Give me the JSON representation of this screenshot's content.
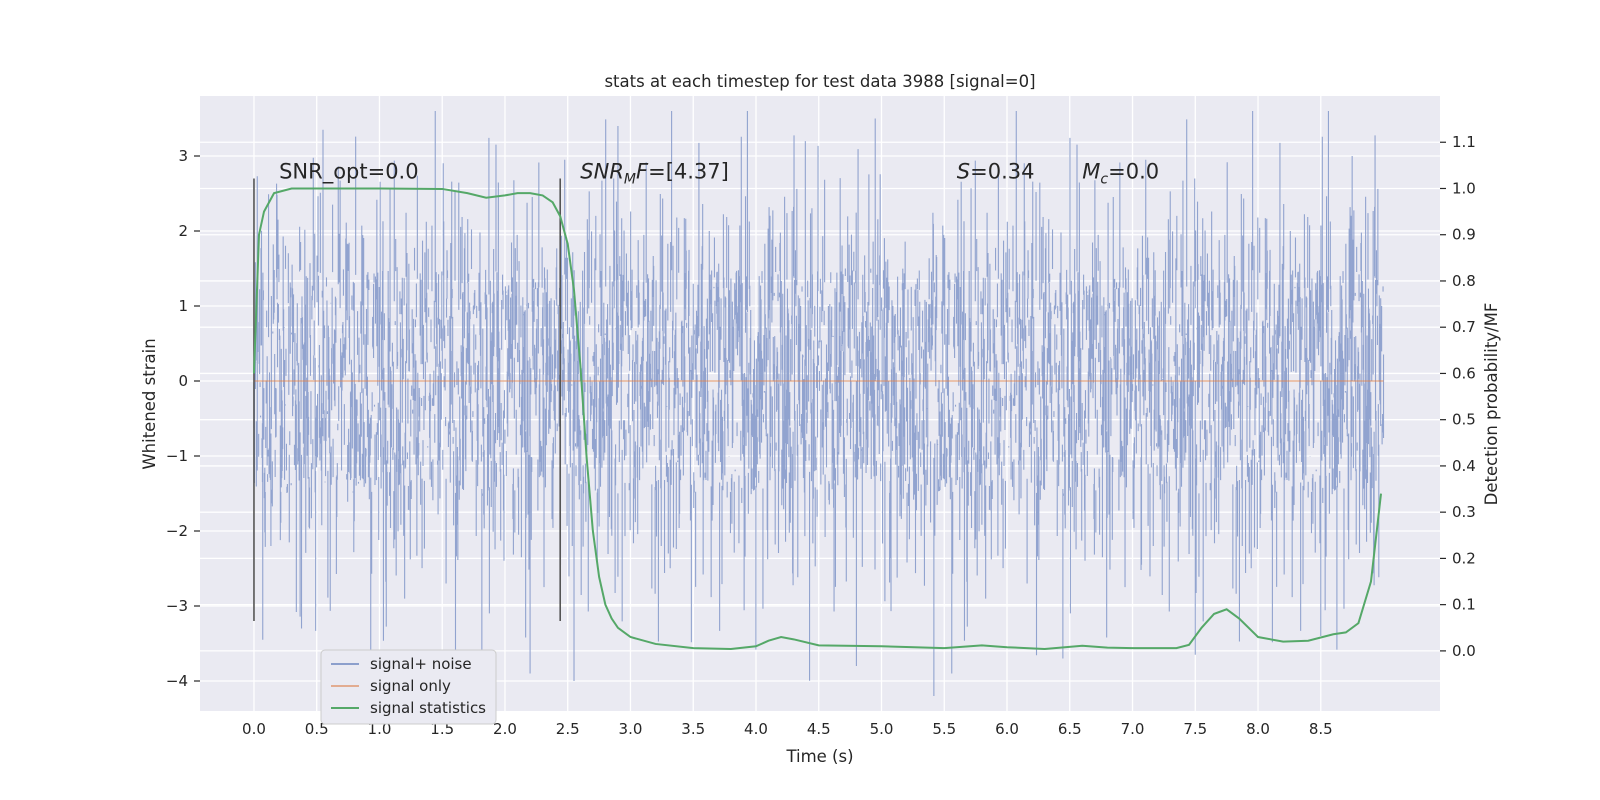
{
  "chart_data": {
    "type": "line",
    "title": "stats at each timestep for test data 3988 [signal=0]",
    "xlabel": "Time (s)",
    "ylabel": "Whitened strain",
    "y2label": "Detection probability/MF",
    "xlim": [
      -0.43,
      9.45
    ],
    "ylim": [
      -4.4,
      3.8
    ],
    "y2lim": [
      -0.13,
      1.2
    ],
    "x_ticks": [
      "0.0",
      "0.5",
      "1.0",
      "1.5",
      "2.0",
      "2.5",
      "3.0",
      "3.5",
      "4.0",
      "4.5",
      "5.0",
      "5.5",
      "6.0",
      "6.5",
      "7.0",
      "7.5",
      "8.0",
      "8.5"
    ],
    "y_ticks": [
      "3",
      "2",
      "1",
      "0",
      "−1",
      "−2",
      "−3",
      "−4"
    ],
    "y2_ticks": [
      "1.1",
      "1.0",
      "0.9",
      "0.8",
      "0.7",
      "0.6",
      "0.5",
      "0.4",
      "0.3",
      "0.2",
      "0.1",
      "0.0"
    ],
    "grid": true,
    "legend_position": "lower-left",
    "colors": {
      "noise": "#8c9fcc",
      "signal": "#dd8452",
      "stats": "#55a868",
      "axes_bg": "#eaeaf2",
      "vline": "#555555"
    },
    "annotations": [
      {
        "label": "SNR_opt=0.0",
        "x": 0.2,
        "y": 2.7
      },
      {
        "label": "SNR_MF=[4.37]",
        "x": 2.6,
        "y": 2.7
      },
      {
        "label": "S=0.34",
        "x": 5.6,
        "y": 2.7
      },
      {
        "label": "M_c=0.0",
        "x": 6.6,
        "y": 2.7
      }
    ],
    "vlines": [
      {
        "x": 0.0,
        "ymin": -3.2,
        "ymax": 2.7
      },
      {
        "x": 2.44,
        "ymin": -3.2,
        "ymax": 2.7
      }
    ],
    "series": [
      {
        "name": "signal+ noise",
        "axis": "left",
        "x_range": [
          0.0,
          9.0
        ],
        "typical_envelope": [
          -1.5,
          1.5
        ],
        "extremes": [
          {
            "x": 0.55,
            "y": 3.35
          },
          {
            "x": 0.07,
            "y": -3.45
          },
          {
            "x": 2.2,
            "y": -3.9
          },
          {
            "x": 2.55,
            "y": -4.0
          },
          {
            "x": 2.9,
            "y": 3.4
          },
          {
            "x": 4.8,
            "y": -3.8
          },
          {
            "x": 4.95,
            "y": 3.5
          },
          {
            "x": 7.5,
            "y": -3.65
          },
          {
            "x": 8.5,
            "y": -3.4
          },
          {
            "x": 8.75,
            "y": 3.0
          }
        ]
      },
      {
        "name": "signal only",
        "axis": "left",
        "x": [
          0.0,
          9.0
        ],
        "y": [
          0.0,
          0.0
        ]
      },
      {
        "name": "signal statistics",
        "axis": "right",
        "x": [
          0.0,
          0.04,
          0.08,
          0.16,
          0.3,
          0.5,
          1.0,
          1.5,
          1.7,
          1.85,
          2.0,
          2.1,
          2.2,
          2.3,
          2.38,
          2.44,
          2.5,
          2.55,
          2.6,
          2.65,
          2.7,
          2.75,
          2.8,
          2.85,
          2.9,
          3.0,
          3.2,
          3.5,
          3.8,
          4.0,
          4.1,
          4.2,
          4.3,
          4.5,
          5.0,
          5.5,
          5.8,
          6.0,
          6.3,
          6.6,
          6.8,
          7.0,
          7.2,
          7.35,
          7.45,
          7.55,
          7.65,
          7.75,
          7.85,
          8.0,
          8.2,
          8.4,
          8.6,
          8.7,
          8.8,
          8.9,
          8.98
        ],
        "y": [
          0.6,
          0.9,
          0.95,
          0.99,
          1.0,
          1.0,
          1.0,
          0.999,
          0.99,
          0.98,
          0.985,
          0.99,
          0.99,
          0.985,
          0.97,
          0.94,
          0.88,
          0.78,
          0.62,
          0.42,
          0.26,
          0.16,
          0.1,
          0.07,
          0.05,
          0.03,
          0.015,
          0.006,
          0.004,
          0.01,
          0.022,
          0.03,
          0.025,
          0.012,
          0.01,
          0.006,
          0.012,
          0.008,
          0.004,
          0.011,
          0.007,
          0.006,
          0.006,
          0.006,
          0.013,
          0.05,
          0.08,
          0.09,
          0.07,
          0.03,
          0.02,
          0.022,
          0.036,
          0.04,
          0.06,
          0.15,
          0.34
        ]
      }
    ]
  }
}
